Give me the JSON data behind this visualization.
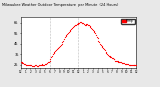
{
  "title": "Milwaukee Weather Outdoor Temperature  per Minute  (24 Hours)",
  "background_color": "#e8e8e8",
  "plot_bg_color": "#ffffff",
  "dot_color": "#ff0000",
  "dot_size": 0.8,
  "legend_label": "Temp",
  "legend_rect_color": "#ff0000",
  "ylim": [
    22,
    70
  ],
  "xlim": [
    0,
    1440
  ],
  "yticks": [
    25,
    35,
    45,
    55,
    65
  ],
  "xtick_positions": [
    0,
    60,
    120,
    180,
    240,
    300,
    360,
    420,
    480,
    540,
    600,
    660,
    720,
    780,
    840,
    900,
    960,
    1020,
    1080,
    1140,
    1200,
    1260,
    1320,
    1380,
    1440
  ],
  "xtick_labels": [
    "12\n1",
    "1\n1",
    "2\n1",
    "3\n1",
    "4\n1",
    "5\n1",
    "6\n1",
    "7\n1",
    "8\n1",
    "9\n1",
    "10\n1",
    "11\n1",
    "12\nP",
    "1\nP",
    "2\nP",
    "3\nP",
    "4\nP",
    "5\nP",
    "6\nP",
    "7\nP",
    "8\nP",
    "9\nP",
    "10\nP",
    "11\nP",
    "12\n1"
  ],
  "vline_positions": [
    360,
    720
  ],
  "temperature_data": [
    [
      0,
      28
    ],
    [
      10,
      28
    ],
    [
      20,
      27
    ],
    [
      30,
      27
    ],
    [
      40,
      26
    ],
    [
      50,
      26
    ],
    [
      60,
      25
    ],
    [
      70,
      25
    ],
    [
      80,
      25
    ],
    [
      90,
      25
    ],
    [
      100,
      25
    ],
    [
      110,
      25
    ],
    [
      120,
      25
    ],
    [
      130,
      25
    ],
    [
      140,
      24
    ],
    [
      150,
      24
    ],
    [
      160,
      24
    ],
    [
      170,
      24
    ],
    [
      180,
      25
    ],
    [
      190,
      25
    ],
    [
      200,
      24
    ],
    [
      210,
      24
    ],
    [
      220,
      24
    ],
    [
      230,
      25
    ],
    [
      240,
      25
    ],
    [
      250,
      25
    ],
    [
      260,
      25
    ],
    [
      270,
      26
    ],
    [
      280,
      25
    ],
    [
      290,
      25
    ],
    [
      300,
      26
    ],
    [
      310,
      26
    ],
    [
      320,
      26
    ],
    [
      330,
      27
    ],
    [
      340,
      28
    ],
    [
      350,
      28
    ],
    [
      360,
      29
    ],
    [
      370,
      30
    ],
    [
      380,
      32
    ],
    [
      390,
      33
    ],
    [
      400,
      35
    ],
    [
      410,
      36
    ],
    [
      420,
      37
    ],
    [
      430,
      38
    ],
    [
      440,
      39
    ],
    [
      450,
      40
    ],
    [
      460,
      41
    ],
    [
      470,
      41
    ],
    [
      480,
      42
    ],
    [
      490,
      43
    ],
    [
      500,
      44
    ],
    [
      510,
      45
    ],
    [
      520,
      47
    ],
    [
      530,
      48
    ],
    [
      540,
      49
    ],
    [
      550,
      51
    ],
    [
      560,
      52
    ],
    [
      570,
      53
    ],
    [
      580,
      54
    ],
    [
      590,
      55
    ],
    [
      600,
      56
    ],
    [
      610,
      57
    ],
    [
      620,
      58
    ],
    [
      630,
      59
    ],
    [
      640,
      60
    ],
    [
      650,
      61
    ],
    [
      660,
      62
    ],
    [
      670,
      62
    ],
    [
      680,
      63
    ],
    [
      690,
      63
    ],
    [
      700,
      64
    ],
    [
      710,
      64
    ],
    [
      720,
      65
    ],
    [
      730,
      65
    ],
    [
      740,
      66
    ],
    [
      750,
      66
    ],
    [
      760,
      65
    ],
    [
      770,
      65
    ],
    [
      780,
      65
    ],
    [
      790,
      64
    ],
    [
      800,
      63
    ],
    [
      810,
      63
    ],
    [
      820,
      64
    ],
    [
      830,
      64
    ],
    [
      840,
      63
    ],
    [
      850,
      63
    ],
    [
      860,
      62
    ],
    [
      870,
      61
    ],
    [
      880,
      60
    ],
    [
      890,
      59
    ],
    [
      900,
      58
    ],
    [
      910,
      57
    ],
    [
      920,
      56
    ],
    [
      930,
      55
    ],
    [
      940,
      53
    ],
    [
      950,
      51
    ],
    [
      960,
      50
    ],
    [
      970,
      48
    ],
    [
      980,
      47
    ],
    [
      990,
      45
    ],
    [
      1000,
      44
    ],
    [
      1010,
      43
    ],
    [
      1020,
      42
    ],
    [
      1030,
      41
    ],
    [
      1040,
      40
    ],
    [
      1050,
      39
    ],
    [
      1060,
      37
    ],
    [
      1070,
      36
    ],
    [
      1080,
      35
    ],
    [
      1090,
      34
    ],
    [
      1100,
      33
    ],
    [
      1110,
      33
    ],
    [
      1120,
      32
    ],
    [
      1130,
      32
    ],
    [
      1140,
      31
    ],
    [
      1150,
      31
    ],
    [
      1160,
      30
    ],
    [
      1170,
      30
    ],
    [
      1180,
      29
    ],
    [
      1190,
      29
    ],
    [
      1200,
      29
    ],
    [
      1210,
      29
    ],
    [
      1220,
      28
    ],
    [
      1230,
      28
    ],
    [
      1240,
      28
    ],
    [
      1250,
      28
    ],
    [
      1260,
      27
    ],
    [
      1270,
      27
    ],
    [
      1280,
      27
    ],
    [
      1290,
      27
    ],
    [
      1300,
      26
    ],
    [
      1310,
      26
    ],
    [
      1320,
      26
    ],
    [
      1330,
      26
    ],
    [
      1340,
      26
    ],
    [
      1350,
      25
    ],
    [
      1360,
      25
    ],
    [
      1370,
      25
    ],
    [
      1380,
      25
    ],
    [
      1390,
      25
    ],
    [
      1400,
      25
    ],
    [
      1410,
      25
    ],
    [
      1420,
      25
    ],
    [
      1430,
      25
    ],
    [
      1440,
      25
    ]
  ]
}
